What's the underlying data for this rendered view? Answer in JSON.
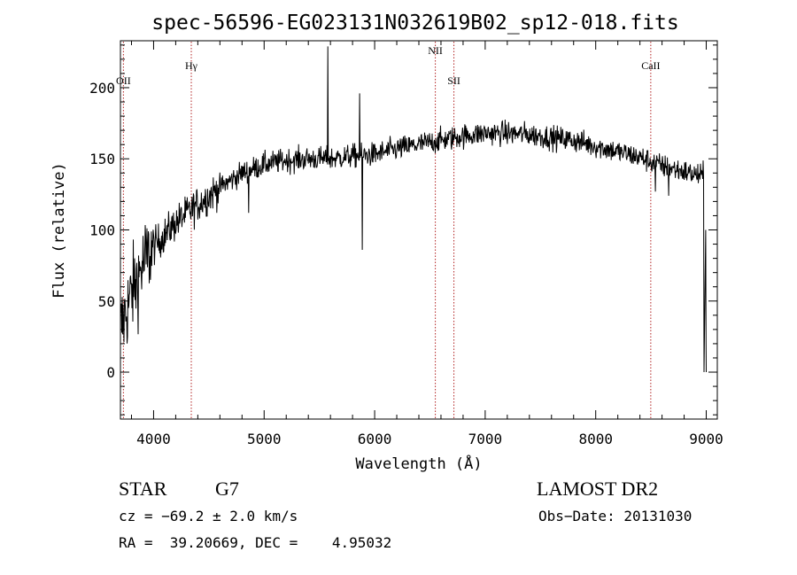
{
  "chart_data": {
    "type": "line",
    "title": "spec-56596-EG023131N032619B02_sp12-018.fits",
    "xlabel": "Wavelength (Å)",
    "ylabel": "Flux (relative)",
    "xlim": [
      3700,
      9100
    ],
    "ylim": [
      -33,
      233
    ],
    "xticks": [
      "4000",
      "5000",
      "6000",
      "7000",
      "8000",
      "9000"
    ],
    "yticks": [
      "0",
      "50",
      "100",
      "150",
      "200"
    ],
    "grid": false,
    "line_color": "#000000",
    "marker_color": "#b22222",
    "lines": [
      {
        "label": "OII",
        "wavelength": 3727
      },
      {
        "label": "Hγ",
        "wavelength": 4341
      },
      {
        "label": "NII",
        "wavelength": 6549
      },
      {
        "label": "SII",
        "wavelength": 6717
      },
      {
        "label": "CaII",
        "wavelength": 8498
      }
    ],
    "continuum": [
      [
        3700,
        30
      ],
      [
        3800,
        55
      ],
      [
        3900,
        75
      ],
      [
        4000,
        88
      ],
      [
        4200,
        105
      ],
      [
        4400,
        118
      ],
      [
        4600,
        130
      ],
      [
        4800,
        140
      ],
      [
        5000,
        146
      ],
      [
        5200,
        149
      ],
      [
        5400,
        150
      ],
      [
        5600,
        150
      ],
      [
        5800,
        152
      ],
      [
        6000,
        153
      ],
      [
        6200,
        157
      ],
      [
        6400,
        160
      ],
      [
        6600,
        163
      ],
      [
        6800,
        166
      ],
      [
        7000,
        168
      ],
      [
        7200,
        168
      ],
      [
        7400,
        167
      ],
      [
        7600,
        165
      ],
      [
        7800,
        163
      ],
      [
        8000,
        159
      ],
      [
        8200,
        155
      ],
      [
        8400,
        151
      ],
      [
        8600,
        145
      ],
      [
        8800,
        141
      ],
      [
        8950,
        138
      ]
    ],
    "features": [
      {
        "x": 5577,
        "y": 229
      },
      {
        "x": 5865,
        "y": 196
      },
      {
        "x": 5890,
        "y": 86
      },
      {
        "x": 4861,
        "y": 112
      },
      {
        "x": 8542,
        "y": 127
      },
      {
        "x": 8662,
        "y": 124
      },
      {
        "x": 8990,
        "y": 0
      }
    ]
  },
  "info": {
    "object_class": "STAR",
    "subclass": "G7",
    "survey": "LAMOST DR2",
    "cz": "cz = −69.2 ± 2.0 km/s",
    "obs_date": "Obs−Date: 20131030",
    "coords": "RA =  39.20669, DEC =    4.95032"
  }
}
